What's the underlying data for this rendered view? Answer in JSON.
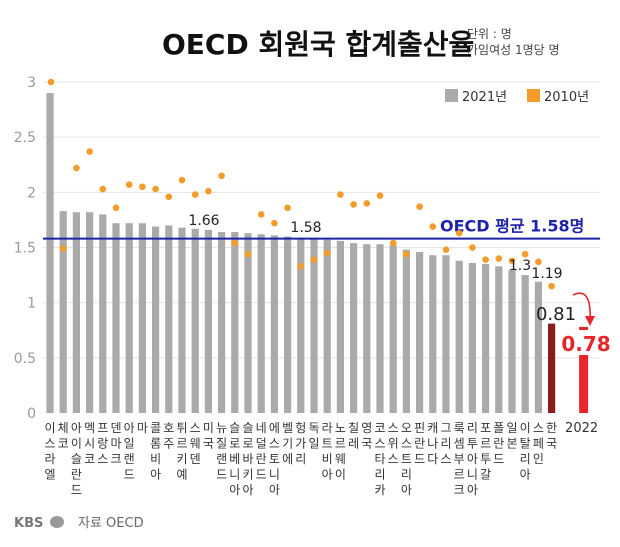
{
  "header": {
    "title": "OECD 회원국 합계출산율",
    "unit_line1": "단위 : 명",
    "unit_line2": "가임여성 1명당 명"
  },
  "footer": {
    "logo_text": "KBS",
    "source": "자료 OECD"
  },
  "colors": {
    "bar_2021": "#aaaaaa",
    "dot_2010": "#f39c2b",
    "avg_line": "#1e22a8",
    "korea_2021": "#8a1c1c",
    "korea_2022": "#e8262a",
    "axis_text": "#9a9a9a"
  },
  "chart_data": {
    "type": "bar",
    "title": "OECD 회원국 합계출산율",
    "ylim": [
      0,
      3
    ],
    "yticks": [
      0,
      0.5,
      1,
      1.5,
      2,
      2.5,
      3
    ],
    "ytick_labels": [
      "0",
      "0.5",
      "1",
      "1.5",
      "2",
      "2.5",
      "3"
    ],
    "legend": [
      {
        "name": "2021년",
        "kind": "bar"
      },
      {
        "name": "2010년",
        "kind": "dot"
      }
    ],
    "categories": [
      {
        "label": "이스라엘"
      },
      {
        "label": "체코"
      },
      {
        "label": "아이슬란드"
      },
      {
        "label": "멕시코"
      },
      {
        "label": "프랑스"
      },
      {
        "label": "덴마크"
      },
      {
        "label": "아일랜드"
      },
      {
        "label": "마"
      },
      {
        "label": "콜롬비아"
      },
      {
        "label": "호주"
      },
      {
        "label": "튀르키예"
      },
      {
        "label": "스웨덴"
      },
      {
        "label": "미국"
      },
      {
        "label": "뉴질랜드"
      },
      {
        "label": "슬로베니아"
      },
      {
        "label": "슬로바키아"
      },
      {
        "label": "네덜란드"
      },
      {
        "label": "에스토니아"
      },
      {
        "label": "벨기에"
      },
      {
        "label": "헝가리"
      },
      {
        "label": "독일"
      },
      {
        "label": "라트비아"
      },
      {
        "label": "노르웨이"
      },
      {
        "label": "칠레"
      },
      {
        "label": "영국"
      },
      {
        "label": "코스타리카"
      },
      {
        "label": "스위스"
      },
      {
        "label": "오스트리아"
      },
      {
        "label": "핀란드"
      },
      {
        "label": "캐나다"
      },
      {
        "label": "그리스"
      },
      {
        "label": "룩셈부르크"
      },
      {
        "label": "리투아니아"
      },
      {
        "label": "포르투갈"
      },
      {
        "label": "폴란드"
      },
      {
        "label": "일본"
      },
      {
        "label": "이탈리아"
      },
      {
        "label": "스페인"
      },
      {
        "label": "한국"
      }
    ],
    "series": [
      {
        "name": "2021년",
        "values": [
          2.9,
          1.83,
          1.82,
          1.82,
          1.8,
          1.72,
          1.72,
          1.72,
          1.69,
          1.7,
          1.68,
          1.67,
          1.66,
          1.64,
          1.64,
          1.63,
          1.62,
          1.61,
          1.6,
          1.59,
          1.58,
          1.57,
          1.56,
          1.54,
          1.53,
          1.53,
          1.52,
          1.48,
          1.46,
          1.43,
          1.43,
          1.38,
          1.36,
          1.35,
          1.33,
          1.3,
          1.25,
          1.19,
          0.81
        ]
      },
      {
        "name": "2010년",
        "values": [
          3.0,
          1.49,
          2.22,
          2.37,
          2.03,
          1.86,
          2.07,
          2.05,
          2.03,
          1.96,
          2.11,
          1.98,
          2.01,
          2.15,
          1.54,
          1.44,
          1.8,
          1.72,
          1.86,
          1.33,
          1.39,
          1.45,
          1.98,
          1.89,
          1.9,
          1.97,
          1.54,
          1.44,
          1.87,
          1.69,
          1.48,
          1.63,
          1.5,
          1.39,
          1.4,
          1.38,
          1.44,
          1.37,
          1.15
        ]
      }
    ],
    "korea_2022": {
      "label": "2022",
      "value": 0.78
    },
    "average": {
      "label": "OECD 평균 1.58명",
      "value": 1.58
    },
    "annotations": [
      {
        "text": "1.66",
        "index": 12
      },
      {
        "text": "1.58",
        "index": 20
      },
      {
        "text": "1.3",
        "index": 35
      },
      {
        "text": "1.19",
        "index": 37
      },
      {
        "text": "0.81",
        "index": 38
      },
      {
        "text": "0.78",
        "target": "korea_2022"
      }
    ]
  }
}
